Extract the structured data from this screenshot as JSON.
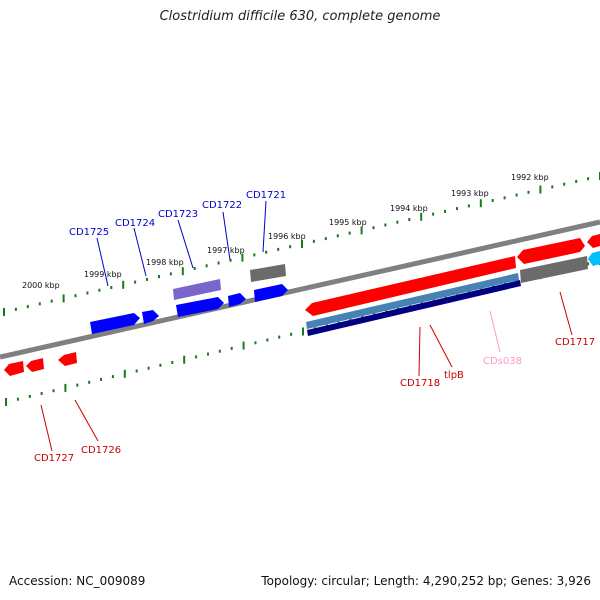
{
  "title": "Clostridium difficile 630, complete genome",
  "footer": {
    "accession": "Accession: NC_009089",
    "summary": "Topology: circular; Length: 4,290,252 bp; Genes: 3,926"
  },
  "colors": {
    "backbone": "#808080",
    "ticks": "#1a7a1a",
    "forward_cds": "#ff0000",
    "reverse_cds": "#0000ff",
    "rna_or_other": "#7766cc",
    "pseudo": "#6b6b6b",
    "cds_track": "#4682b4",
    "cds_track_dark": "#000080",
    "misc_light": "#00bfff",
    "label_red": "#cc0000",
    "label_blue": "#0000cc",
    "label_pink": "#ff99cc"
  },
  "kbp_labels": [
    "2000 kbp",
    "1999 kbp",
    "1998 kbp",
    "1997 kbp",
    "1996 kbp",
    "1995 kbp",
    "1994 kbp",
    "1993 kbp",
    "1992 kbp"
  ],
  "gene_labels": {
    "cd1725": "CD1725",
    "cd1724": "CD1724",
    "cd1723": "CD1723",
    "cd1722": "CD1722",
    "cd1721": "CD1721",
    "cd1727": "CD1727",
    "cd1726": "CD1726",
    "cd1718": "CD1718",
    "tlpb": "tlpB",
    "cds038": "CDs038",
    "cd1717": "CD1717"
  }
}
